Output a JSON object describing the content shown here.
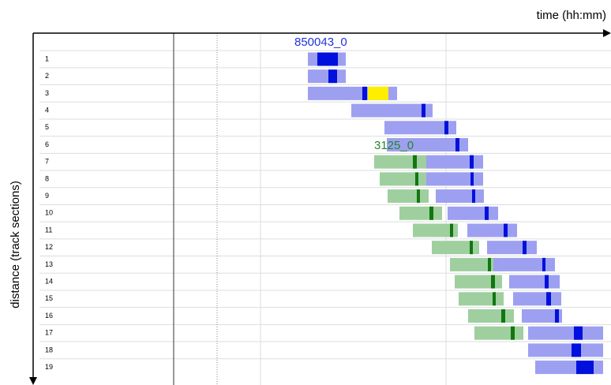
{
  "axes": {
    "x_label": "time (hh:mm)",
    "y_label": "distance (track sections)"
  },
  "rows": [
    "1",
    "2",
    "3",
    "4",
    "5",
    "6",
    "7",
    "8",
    "9",
    "10",
    "11",
    "12",
    "13",
    "14",
    "15",
    "16",
    "17",
    "18",
    "19"
  ],
  "trains": [
    {
      "label": "850043_0"
    },
    {
      "label": "3125_0"
    }
  ]
}
